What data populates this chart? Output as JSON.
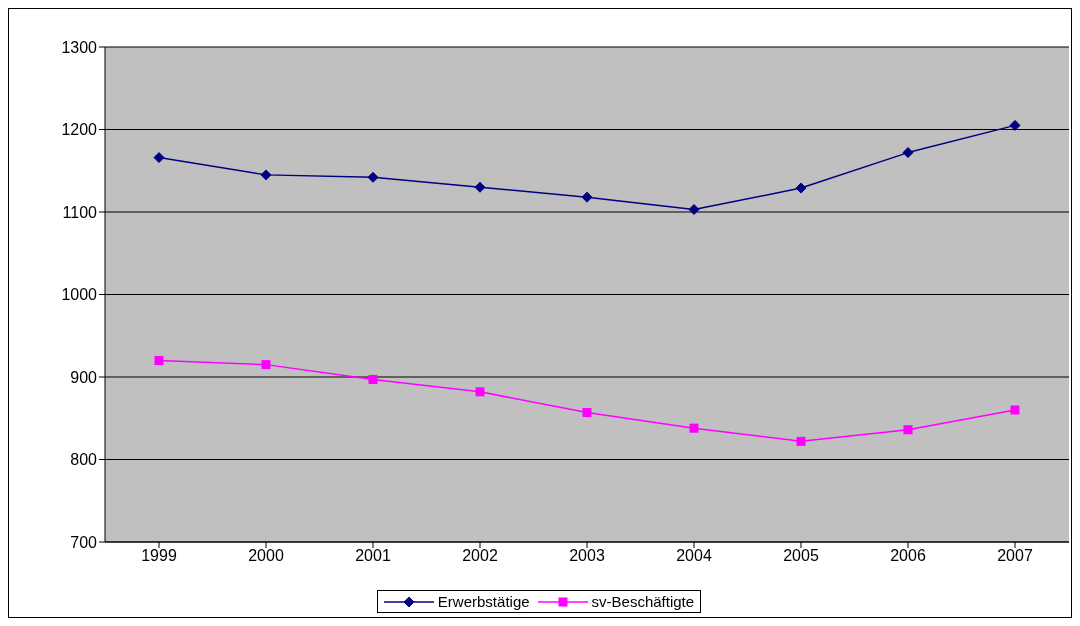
{
  "chart_data": {
    "type": "line",
    "categories": [
      "1999",
      "2000",
      "2001",
      "2002",
      "2003",
      "2004",
      "2005",
      "2006",
      "2007"
    ],
    "series": [
      {
        "name": "Erwerbstätige",
        "color": "#000080",
        "marker": "diamond",
        "values": [
          1166,
          1145,
          1142,
          1130,
          1118,
          1103,
          1129,
          1172,
          1205
        ]
      },
      {
        "name": "sv-Beschäftigte",
        "color": "#ff00ff",
        "marker": "square",
        "values": [
          920,
          915,
          897,
          882,
          857,
          838,
          822,
          836,
          860
        ]
      }
    ],
    "ylim": [
      700,
      1300
    ],
    "yticks": [
      700,
      800,
      900,
      1000,
      1100,
      1200,
      1300
    ],
    "grid": "y",
    "legend": "bottom",
    "line_style": "solid"
  }
}
